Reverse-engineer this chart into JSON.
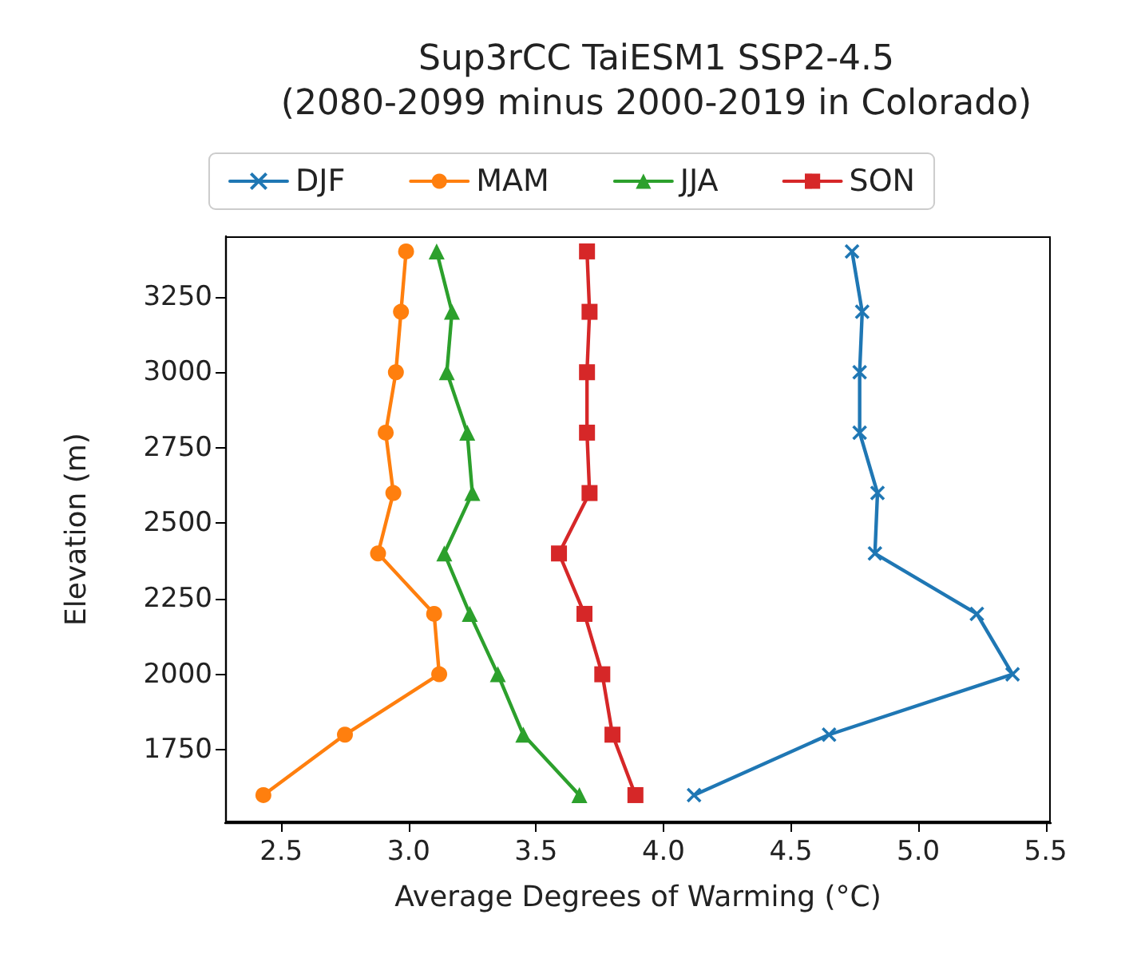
{
  "chart_data": {
    "type": "line",
    "title": "Sup3rCC TaiESM1 SSP2-4.5\n(2080-2099 minus 2000-2019 in Colorado)",
    "xlabel": "Average Degrees of Warming (°C)",
    "ylabel": "Elevation (m)",
    "xlim": [
      2.28,
      5.52
    ],
    "xticks": [
      {
        "value": 2.5,
        "label": "2.5"
      },
      {
        "value": 3,
        "label": "3.0"
      },
      {
        "value": 3.5,
        "label": "3.5"
      },
      {
        "value": 4,
        "label": "4.0"
      },
      {
        "value": 4.5,
        "label": "4.5"
      },
      {
        "value": 5,
        "label": "5.0"
      },
      {
        "value": 5.5,
        "label": "5.5"
      }
    ],
    "ylim": [
      1510,
      3450
    ],
    "yticks": [
      1750,
      2000,
      2250,
      2500,
      2750,
      3000,
      3250
    ],
    "grid": false,
    "legend": "top",
    "line_style": "solid",
    "series": [
      {
        "name": "DJF",
        "color": "#1f77b4",
        "marker": "cross",
        "x": [
          4.74,
          4.78,
          4.77,
          4.77,
          4.84,
          4.83,
          5.23,
          5.37,
          4.65,
          4.12
        ],
        "values": [
          3400,
          3200,
          3000,
          2800,
          2600,
          2400,
          2200,
          2000,
          1800,
          1600
        ]
      },
      {
        "name": "MAM",
        "color": "#ff7f0e",
        "marker": "circle",
        "x": [
          2.99,
          2.97,
          2.95,
          2.91,
          2.94,
          2.88,
          3.1,
          3.12,
          2.75,
          2.43
        ],
        "values": [
          3400,
          3200,
          3000,
          2800,
          2600,
          2400,
          2200,
          2000,
          1800,
          1600
        ]
      },
      {
        "name": "JJA",
        "color": "#2ca02c",
        "marker": "triangle",
        "x": [
          3.11,
          3.17,
          3.15,
          3.23,
          3.25,
          3.14,
          3.24,
          3.35,
          3.45,
          3.67
        ],
        "values": [
          3400,
          3200,
          3000,
          2800,
          2600,
          2400,
          2200,
          2000,
          1800,
          1600
        ]
      },
      {
        "name": "SON",
        "color": "#d62728",
        "marker": "square",
        "x": [
          3.7,
          3.71,
          3.7,
          3.7,
          3.71,
          3.59,
          3.69,
          3.76,
          3.8,
          3.89
        ],
        "values": [
          3400,
          3200,
          3000,
          2800,
          2600,
          2400,
          2200,
          2000,
          1800,
          1600
        ]
      }
    ]
  }
}
